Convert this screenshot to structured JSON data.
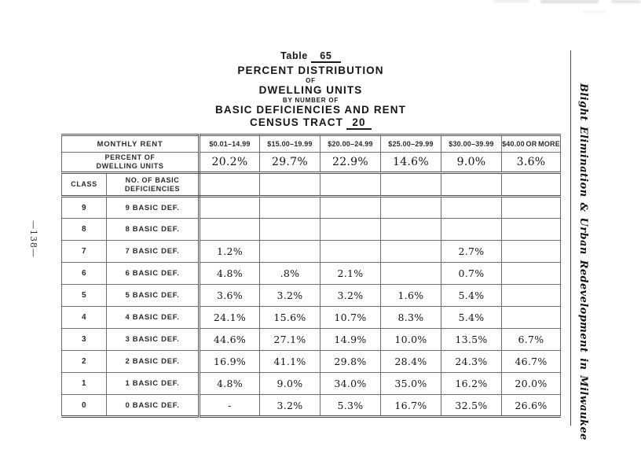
{
  "page": {
    "page_number": "—138—",
    "sidebar_text": "Blight Elimination & Urban Redevelopment in Milwaukee"
  },
  "title": {
    "table_word": "Table",
    "table_number": "65",
    "line1": "PERCENT DISTRIBUTION",
    "line2": "OF",
    "line3": "DWELLING UNITS",
    "line4": "BY NUMBER OF",
    "line5": "BASIC DEFICIENCIES AND RENT",
    "census_label": "CENSUS TRACT",
    "census_number": "20"
  },
  "table": {
    "corner_header": "MONTHLY RENT",
    "percent_header": "PERCENT OF\nDWELLING UNITS",
    "class_header": "CLASS",
    "deficiencies_header": "NO. OF BASIC\nDEFICIENCIES",
    "rent_columns": [
      "$0.01–14.99",
      "$15.00–19.99",
      "$20.00–24.99",
      "$25.00–29.99",
      "$30.00–39.99",
      "$40.00 OR MORE"
    ],
    "percent_of_units": [
      "20.2%",
      "29.7%",
      "22.9%",
      "14.6%",
      "9.0%",
      "3.6%"
    ],
    "rows": [
      {
        "class": "9",
        "label": "9 BASIC DEF.",
        "values": [
          "",
          "",
          "",
          "",
          "",
          ""
        ]
      },
      {
        "class": "8",
        "label": "8 BASIC DEF.",
        "values": [
          "",
          "",
          "",
          "",
          "",
          ""
        ]
      },
      {
        "class": "7",
        "label": "7 BASIC DEF.",
        "values": [
          "1.2%",
          "",
          "",
          "",
          "2.7%",
          ""
        ]
      },
      {
        "class": "6",
        "label": "6 BASIC DEF.",
        "values": [
          "4.8%",
          ".8%",
          "2.1%",
          "",
          "0.7%",
          ""
        ]
      },
      {
        "class": "5",
        "label": "5 BASIC DEF.",
        "values": [
          "3.6%",
          "3.2%",
          "3.2%",
          "1.6%",
          "5.4%",
          ""
        ]
      },
      {
        "class": "4",
        "label": "4 BASIC DEF.",
        "values": [
          "24.1%",
          "15.6%",
          "10.7%",
          "8.3%",
          "5.4%",
          ""
        ]
      },
      {
        "class": "3",
        "label": "3 BASIC DEF.",
        "values": [
          "44.6%",
          "27.1%",
          "14.9%",
          "10.0%",
          "13.5%",
          "6.7%"
        ]
      },
      {
        "class": "2",
        "label": "2 BASIC DEF.",
        "values": [
          "16.9%",
          "41.1%",
          "29.8%",
          "28.4%",
          "24.3%",
          "46.7%"
        ]
      },
      {
        "class": "1",
        "label": "1 BASIC DEF.",
        "values": [
          "4.8%",
          "9.0%",
          "34.0%",
          "35.0%",
          "16.2%",
          "20.0%"
        ]
      },
      {
        "class": "0",
        "label": "0 BASIC DEF.",
        "values": [
          "-",
          "3.2%",
          "5.3%",
          "16.7%",
          "32.5%",
          "26.6%"
        ]
      }
    ]
  }
}
